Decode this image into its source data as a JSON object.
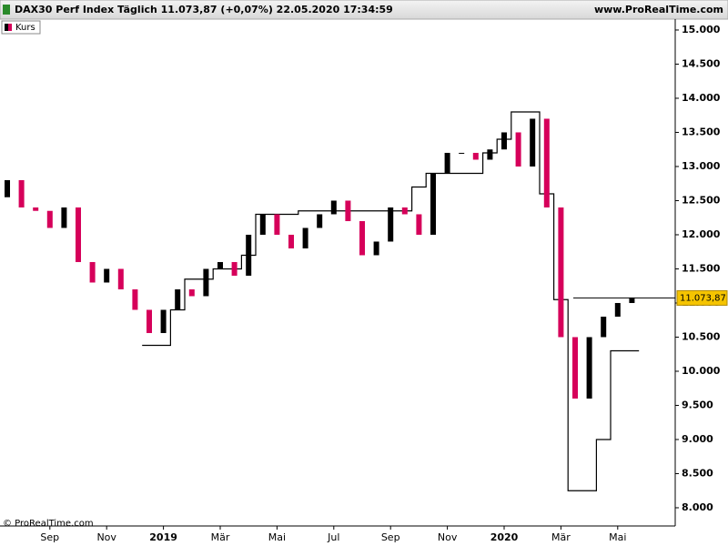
{
  "chart_data": {
    "type": "candlestick",
    "title": "DAX30 Perf Index Täglich 11.073,87 (+0,07%) 22.05.2020 17:34:59",
    "source": "www.ProRealTime.com",
    "copyright": "© ProRealTime.com",
    "categories": [
      null,
      null,
      null,
      "Sep",
      null,
      null,
      null,
      "Nov",
      null,
      null,
      null,
      "2019",
      null,
      null,
      null,
      "Mär",
      null,
      null,
      null,
      "Mai",
      null,
      null,
      null,
      "Jul",
      null,
      null,
      null,
      "Sep",
      null,
      null,
      null,
      "Nov",
      null,
      null,
      null,
      "2020",
      null,
      null,
      null,
      "Mär",
      null,
      null,
      null,
      "Mai",
      null
    ],
    "series": [
      {
        "name": "Kurs",
        "up_color": "#000000",
        "down_color": "#d6005a",
        "open": [
          12550,
          12800,
          12400,
          12350,
          12100,
          12400,
          11600,
          11300,
          11500,
          11200,
          10900,
          10560,
          10900,
          11200,
          11100,
          11500,
          11600,
          11400,
          12000,
          12300,
          12000,
          11800,
          12100,
          12300,
          12500,
          12200,
          11700,
          11900,
          12400,
          12300,
          12000,
          12900,
          13200,
          13200,
          13100,
          13250,
          13500,
          13000,
          13700,
          12400,
          10500,
          9600,
          10500,
          10800,
          11000
        ],
        "values": [
          12800,
          12400,
          12350,
          12100,
          12400,
          11600,
          11300,
          11500,
          11200,
          10900,
          10560,
          10900,
          11200,
          11100,
          11500,
          11600,
          11400,
          12000,
          12300,
          12000,
          11800,
          12100,
          12300,
          12500,
          12200,
          11700,
          11900,
          12400,
          12300,
          12000,
          12900,
          13200,
          13200,
          13100,
          13250,
          13500,
          13000,
          13700,
          12400,
          10500,
          9600,
          10500,
          10800,
          11000,
          11074
        ]
      }
    ],
    "step_values": [
      null,
      null,
      null,
      null,
      null,
      null,
      null,
      null,
      null,
      null,
      10380,
      10380,
      10900,
      11350,
      11350,
      11500,
      11500,
      11700,
      12300,
      12300,
      12300,
      12350,
      12350,
      12350,
      12350,
      12350,
      12350,
      12350,
      12350,
      12700,
      12900,
      12900,
      12900,
      12900,
      13200,
      13400,
      13800,
      13800,
      12600,
      11050,
      8250,
      8250,
      9000,
      10300,
      10300
    ],
    "last": {
      "value": 11073.87,
      "label": "11.073,87"
    },
    "ylim": [
      7733,
      15173
    ],
    "yticks": [
      {
        "value": 8000,
        "label": "8.000"
      },
      {
        "value": 8500,
        "label": "8.500"
      },
      {
        "value": 9000,
        "label": "9.000"
      },
      {
        "value": 9500,
        "label": "9.500"
      },
      {
        "value": 10000,
        "label": "10.000"
      },
      {
        "value": 10500,
        "label": "10.500"
      },
      {
        "value": 11000,
        "label": "11.000"
      },
      {
        "value": 11500,
        "label": "11.500"
      },
      {
        "value": 12000,
        "label": "12.000"
      },
      {
        "value": 12500,
        "label": "12.500"
      },
      {
        "value": 13000,
        "label": "13.000"
      },
      {
        "value": 13500,
        "label": "13.500"
      },
      {
        "value": 14000,
        "label": "14.000"
      },
      {
        "value": 14500,
        "label": "14.500"
      },
      {
        "value": 15000,
        "label": "15.000"
      }
    ]
  }
}
